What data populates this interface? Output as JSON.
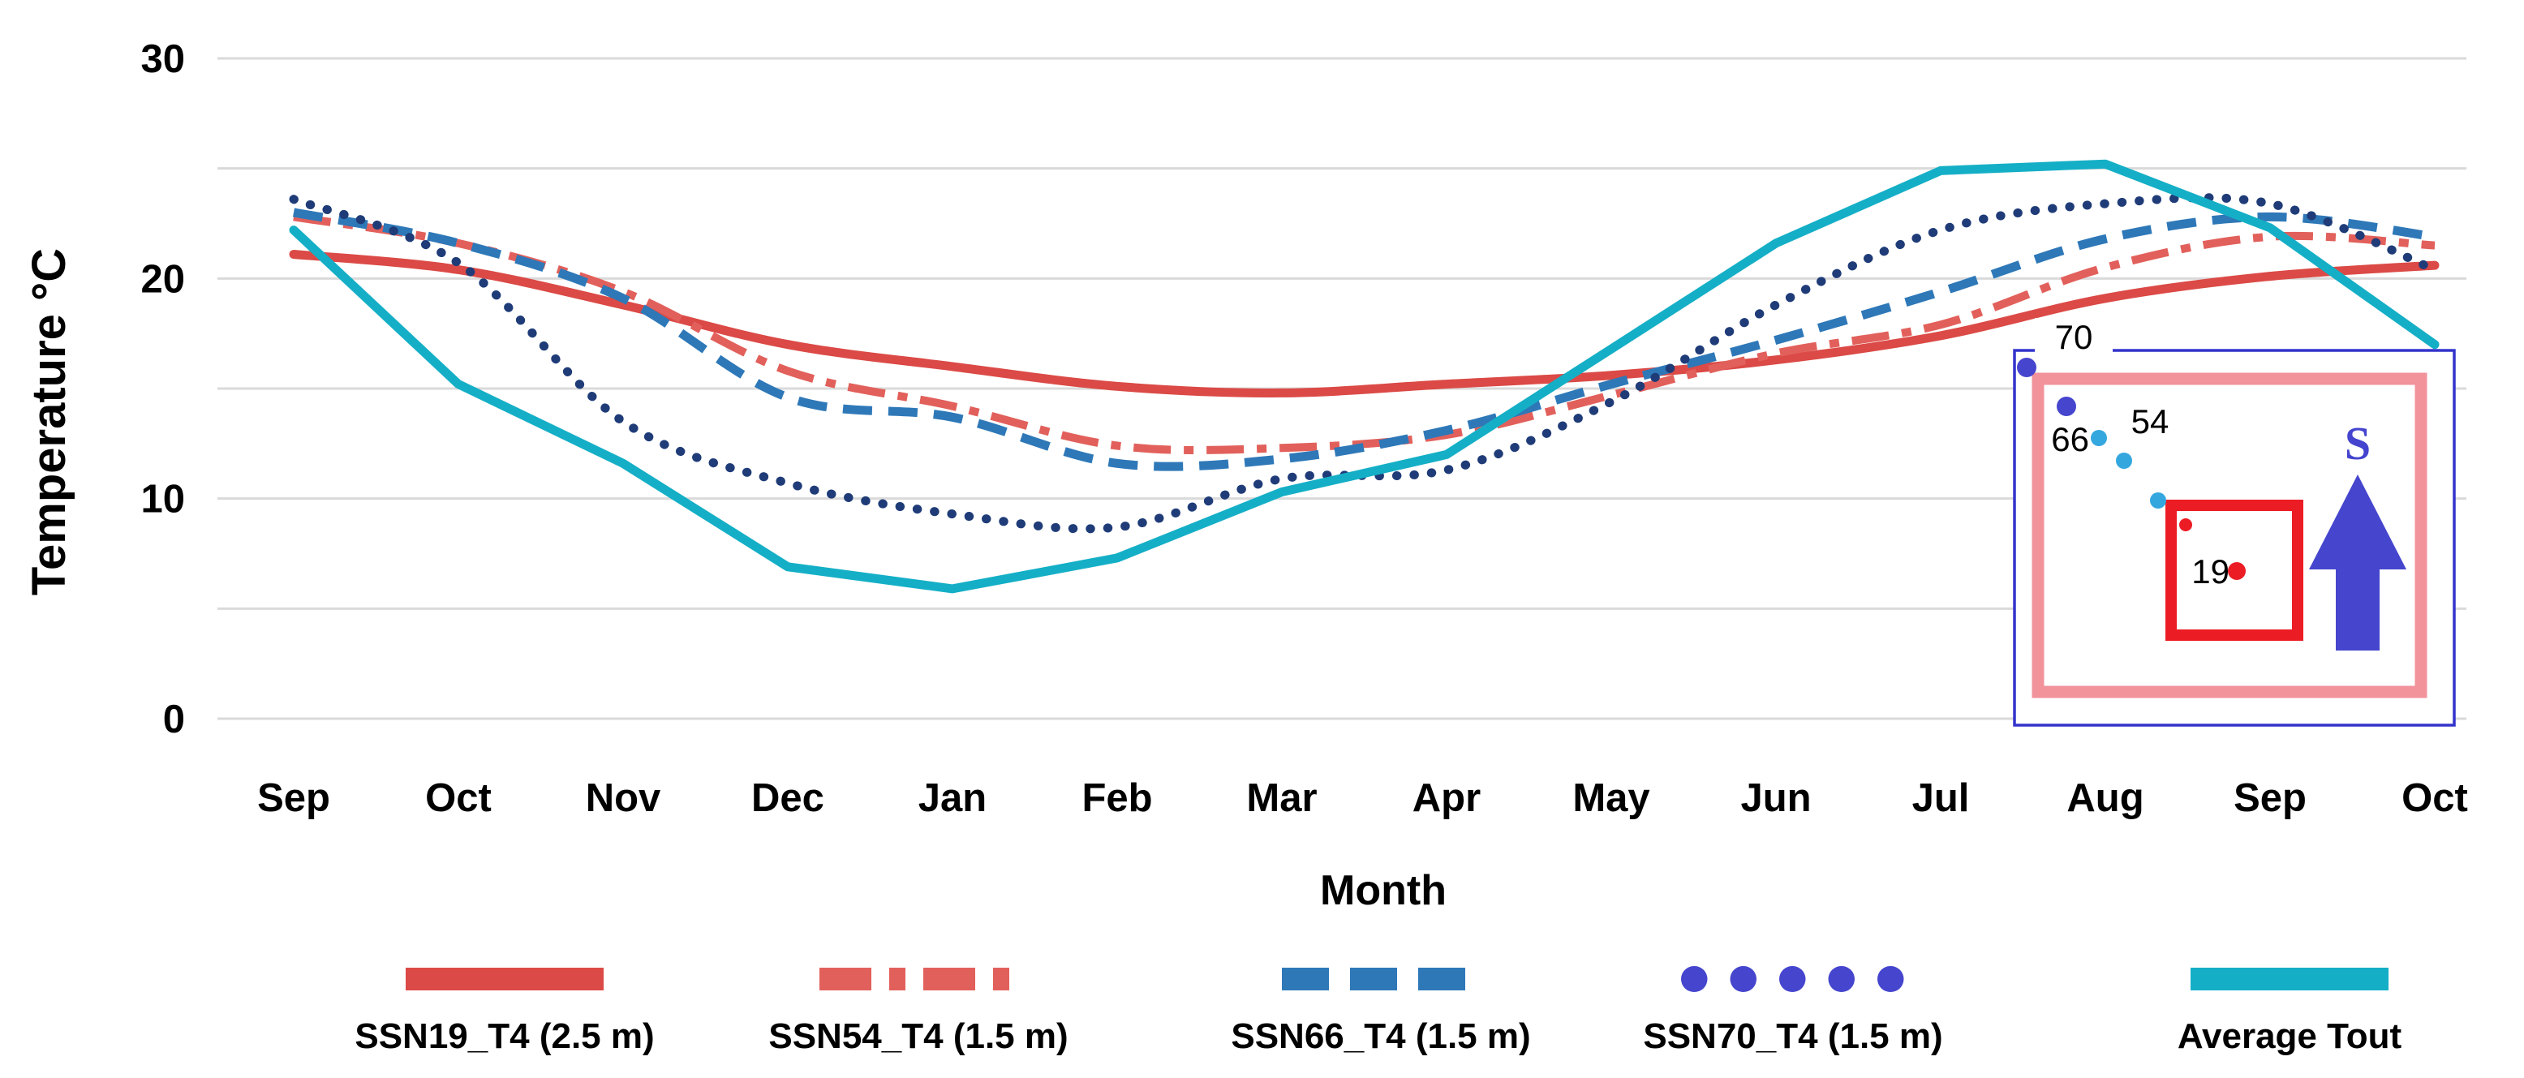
{
  "chart_data": {
    "type": "line",
    "title": "",
    "xlabel": "Month",
    "ylabel": "Temperature  °C",
    "ylim": [
      0,
      30
    ],
    "grid": "horizontal, every 5 °C, light gray",
    "legend_position": "bottom",
    "yticks": [
      {
        "label": "30",
        "value": 30
      },
      {
        "label": "20",
        "value": 20
      },
      {
        "label": "10",
        "value": 10
      },
      {
        "label": "0",
        "value": 0
      }
    ],
    "categories": [
      "Sep",
      "Oct",
      "Nov",
      "Dec",
      "Jan",
      "Feb",
      "Mar",
      "Apr",
      "May",
      "Jun",
      "Jul",
      "Aug",
      "Sep",
      "Oct"
    ],
    "series": [
      {
        "name": "SSN19_T4 (2.5 m)",
        "style": "solid",
        "shape": "smooth",
        "color": "#DB4A46",
        "values": [
          21.1,
          20.4,
          18.8,
          17.0,
          16.0,
          15.1,
          14.8,
          15.2,
          15.6,
          16.3,
          17.4,
          19.1,
          20.1,
          20.6
        ]
      },
      {
        "name": "SSN54_T4 (1.5 m)",
        "style": "dash-dot",
        "shape": "smooth",
        "color": "#E2605B",
        "values": [
          22.8,
          21.6,
          19.4,
          15.8,
          14.2,
          12.4,
          12.3,
          12.9,
          14.7,
          16.6,
          17.9,
          20.5,
          21.9,
          21.5
        ]
      },
      {
        "name": "SSN66_T4 (1.5 m)",
        "style": "dashed",
        "shape": "smooth",
        "color": "#2E78B8",
        "values": [
          23.0,
          21.6,
          19.1,
          14.6,
          13.7,
          11.6,
          11.8,
          13.1,
          15.2,
          17.2,
          19.4,
          21.8,
          22.8,
          21.9
        ]
      },
      {
        "name": "SSN70_T4 (1.5 m)",
        "style": "dotted",
        "shape": "smooth",
        "color": "#1F3C78",
        "legend_color": "#4545CE",
        "values": [
          23.6,
          20.7,
          13.5,
          10.7,
          9.3,
          8.7,
          10.9,
          11.3,
          14.4,
          18.8,
          22.2,
          23.4,
          23.4,
          20.4
        ]
      },
      {
        "name": "Average Tout",
        "style": "solid",
        "shape": "straight",
        "color": "#14AFC6",
        "values": [
          22.2,
          15.2,
          11.6,
          6.9,
          5.9,
          7.3,
          10.3,
          12.0,
          16.8,
          21.6,
          24.9,
          25.2,
          22.3,
          17.0
        ]
      }
    ]
  },
  "inset": {
    "border_color": "#3333CC",
    "building_outline_color": "#F2929B",
    "highlight_box_color": "#EC1C24",
    "compass": {
      "label": "S",
      "color": "#4444CE"
    },
    "points": [
      {
        "label": "70",
        "color": "#4545CE"
      },
      {
        "label": "",
        "color": "#4545CE"
      },
      {
        "label": "66",
        "color": "#35A7DF"
      },
      {
        "label": "54",
        "color": "#35A7DF"
      },
      {
        "label": "",
        "color": "#35A7DF"
      },
      {
        "label": "",
        "color": "#EC1C24"
      },
      {
        "label": "19",
        "color": "#EC1C24"
      }
    ]
  },
  "colors": {
    "gridline": "#DADADA",
    "text": "#000000",
    "background": "#FFFFFF"
  }
}
